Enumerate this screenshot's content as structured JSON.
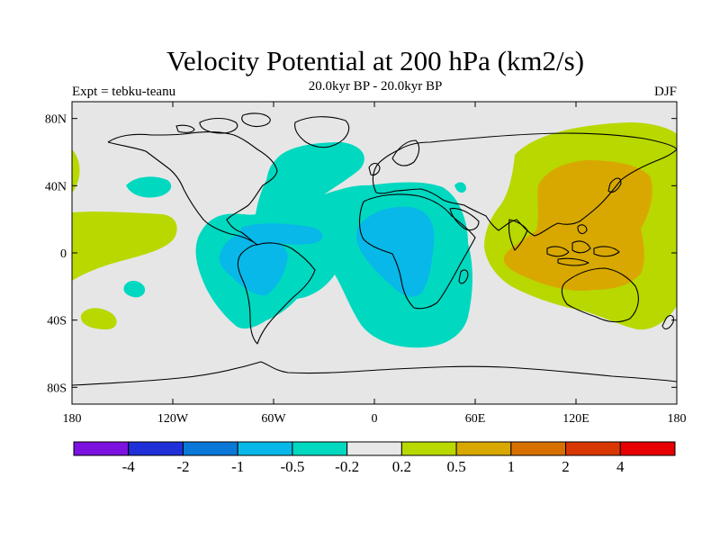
{
  "title": "Velocity Potential at 200 hPa (km2/s)",
  "subtitle": "20.0kyr BP - 20.0kyr BP",
  "left_label": "Expt = tebku-teanu",
  "right_label": "DJF",
  "map": {
    "lon_range": [
      -180,
      180
    ],
    "lat_range": [
      -90,
      90
    ],
    "x_ticks": [
      {
        "lon": -180,
        "label": "180"
      },
      {
        "lon": -120,
        "label": "120W"
      },
      {
        "lon": -60,
        "label": "60W"
      },
      {
        "lon": 0,
        "label": "0"
      },
      {
        "lon": 60,
        "label": "60E"
      },
      {
        "lon": 120,
        "label": "120E"
      },
      {
        "lon": 180,
        "label": "180"
      }
    ],
    "y_ticks": [
      {
        "lat": 80,
        "label": "80N"
      },
      {
        "lat": 40,
        "label": "40N"
      },
      {
        "lat": 0,
        "label": "0"
      },
      {
        "lat": -40,
        "label": "40S"
      },
      {
        "lat": -80,
        "label": "80S"
      }
    ],
    "background_color": "#e6e6e6"
  },
  "colorbar": {
    "colors": [
      "#7b12e0",
      "#2030d8",
      "#0a78d8",
      "#08b8e8",
      "#00d8c0",
      "#e8e8e8",
      "#b8d800",
      "#d8a800",
      "#d87000",
      "#d83800",
      "#e80000"
    ],
    "labels": [
      "-4",
      "-2",
      "-1",
      "-0.5",
      "-0.2",
      "0.2",
      "0.5",
      "1",
      "2",
      "4"
    ]
  }
}
